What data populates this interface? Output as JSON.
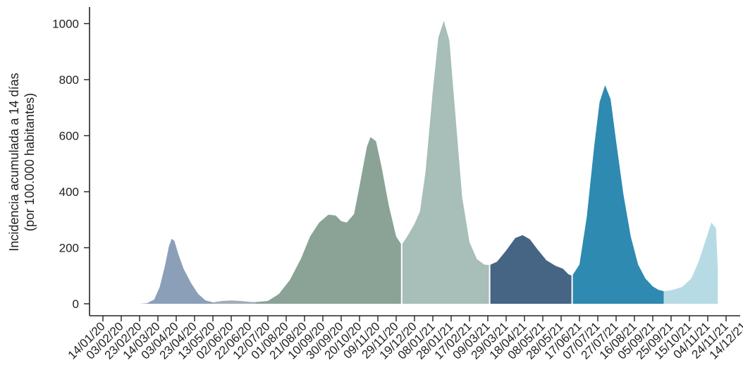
{
  "chart_data": {
    "type": "area",
    "title": "",
    "ylabel_line1": "Incidencia acumulada a 14 días",
    "ylabel_line2": "(por 100.000 habitantes)",
    "xlabel": "",
    "ylim": [
      0,
      1050
    ],
    "yticks": [
      0,
      200,
      400,
      600,
      800,
      1000
    ],
    "grid": false,
    "x_tick_labels": [
      "14/01/20",
      "03/02/20",
      "23/02/20",
      "14/03/20",
      "03/04/20",
      "23/04/20",
      "13/05/20",
      "02/06/20",
      "22/06/20",
      "12/07/20",
      "01/08/20",
      "21/08/20",
      "10/09/20",
      "30/09/20",
      "20/10/20",
      "09/11/20",
      "29/11/20",
      "19/12/20",
      "08/01/21",
      "28/01/21",
      "17/02/21",
      "09/03/21",
      "29/03/21",
      "18/04/21",
      "08/05/21",
      "28/05/21",
      "17/06/21",
      "07/07/21",
      "27/07/21",
      "16/08/21",
      "05/09/21",
      "25/09/21",
      "15/10/21",
      "04/11/21",
      "24/11/21",
      "14/12/21"
    ],
    "series": [
      {
        "color": "#8c9fb8",
        "points": [
          [
            0,
            0
          ],
          [
            1,
            0
          ],
          [
            2,
            0
          ],
          [
            2.4,
            2
          ],
          [
            2.8,
            15
          ],
          [
            3.1,
            60
          ],
          [
            3.4,
            140
          ],
          [
            3.6,
            205
          ],
          [
            3.75,
            232
          ],
          [
            3.9,
            225
          ],
          [
            4.1,
            180
          ],
          [
            4.4,
            125
          ],
          [
            4.8,
            75
          ],
          [
            5.2,
            35
          ],
          [
            5.6,
            12
          ],
          [
            6.0,
            5
          ]
        ]
      },
      {
        "color": "#a3acb4",
        "points": [
          [
            6.0,
            5
          ],
          [
            6.5,
            10
          ],
          [
            7.0,
            12
          ],
          [
            7.5,
            10
          ],
          [
            8.0,
            7
          ],
          [
            8.3,
            6
          ]
        ]
      },
      {
        "color": "#8aa396",
        "points": [
          [
            8.3,
            6
          ],
          [
            9.0,
            10
          ],
          [
            9.6,
            35
          ],
          [
            10.2,
            85
          ],
          [
            10.8,
            160
          ],
          [
            11.3,
            240
          ],
          [
            11.8,
            290
          ],
          [
            12.3,
            318
          ],
          [
            12.7,
            315
          ],
          [
            13.0,
            295
          ],
          [
            13.3,
            290
          ],
          [
            13.7,
            320
          ],
          [
            14.0,
            420
          ],
          [
            14.4,
            560
          ],
          [
            14.6,
            595
          ],
          [
            14.9,
            580
          ],
          [
            15.2,
            490
          ],
          [
            15.6,
            350
          ],
          [
            16.0,
            240
          ],
          [
            16.3,
            210
          ]
        ]
      },
      {
        "color": "#a7beb9",
        "points": [
          [
            16.3,
            210
          ],
          [
            16.6,
            240
          ],
          [
            17.0,
            285
          ],
          [
            17.3,
            330
          ],
          [
            17.6,
            470
          ],
          [
            18.0,
            760
          ],
          [
            18.3,
            950
          ],
          [
            18.6,
            1010
          ],
          [
            18.9,
            940
          ],
          [
            19.2,
            700
          ],
          [
            19.6,
            380
          ],
          [
            20.0,
            220
          ],
          [
            20.4,
            160
          ],
          [
            20.8,
            140
          ],
          [
            21.1,
            138
          ]
        ]
      },
      {
        "color": "#466484",
        "points": [
          [
            21.1,
            138
          ],
          [
            21.5,
            150
          ],
          [
            22.0,
            190
          ],
          [
            22.5,
            235
          ],
          [
            22.9,
            245
          ],
          [
            23.3,
            230
          ],
          [
            23.7,
            195
          ],
          [
            24.2,
            155
          ],
          [
            24.7,
            135
          ],
          [
            25.1,
            125
          ],
          [
            25.4,
            105
          ],
          [
            25.6,
            100
          ]
        ]
      },
      {
        "color": "#2e8ab0",
        "points": [
          [
            25.6,
            100
          ],
          [
            26.0,
            140
          ],
          [
            26.4,
            310
          ],
          [
            26.8,
            560
          ],
          [
            27.1,
            720
          ],
          [
            27.4,
            780
          ],
          [
            27.7,
            730
          ],
          [
            28.0,
            580
          ],
          [
            28.4,
            390
          ],
          [
            28.8,
            240
          ],
          [
            29.2,
            140
          ],
          [
            29.6,
            90
          ],
          [
            30.0,
            62
          ],
          [
            30.3,
            50
          ],
          [
            30.6,
            45
          ]
        ]
      },
      {
        "color": "#b6dbe4",
        "points": [
          [
            30.6,
            45
          ],
          [
            31.0,
            48
          ],
          [
            31.6,
            60
          ],
          [
            32.1,
            90
          ],
          [
            32.5,
            150
          ],
          [
            32.9,
            230
          ],
          [
            33.2,
            290
          ],
          [
            33.45,
            270
          ],
          [
            33.55,
            120
          ]
        ]
      }
    ],
    "boundary_x": [
      16.3,
      21.1,
      25.6
    ]
  }
}
